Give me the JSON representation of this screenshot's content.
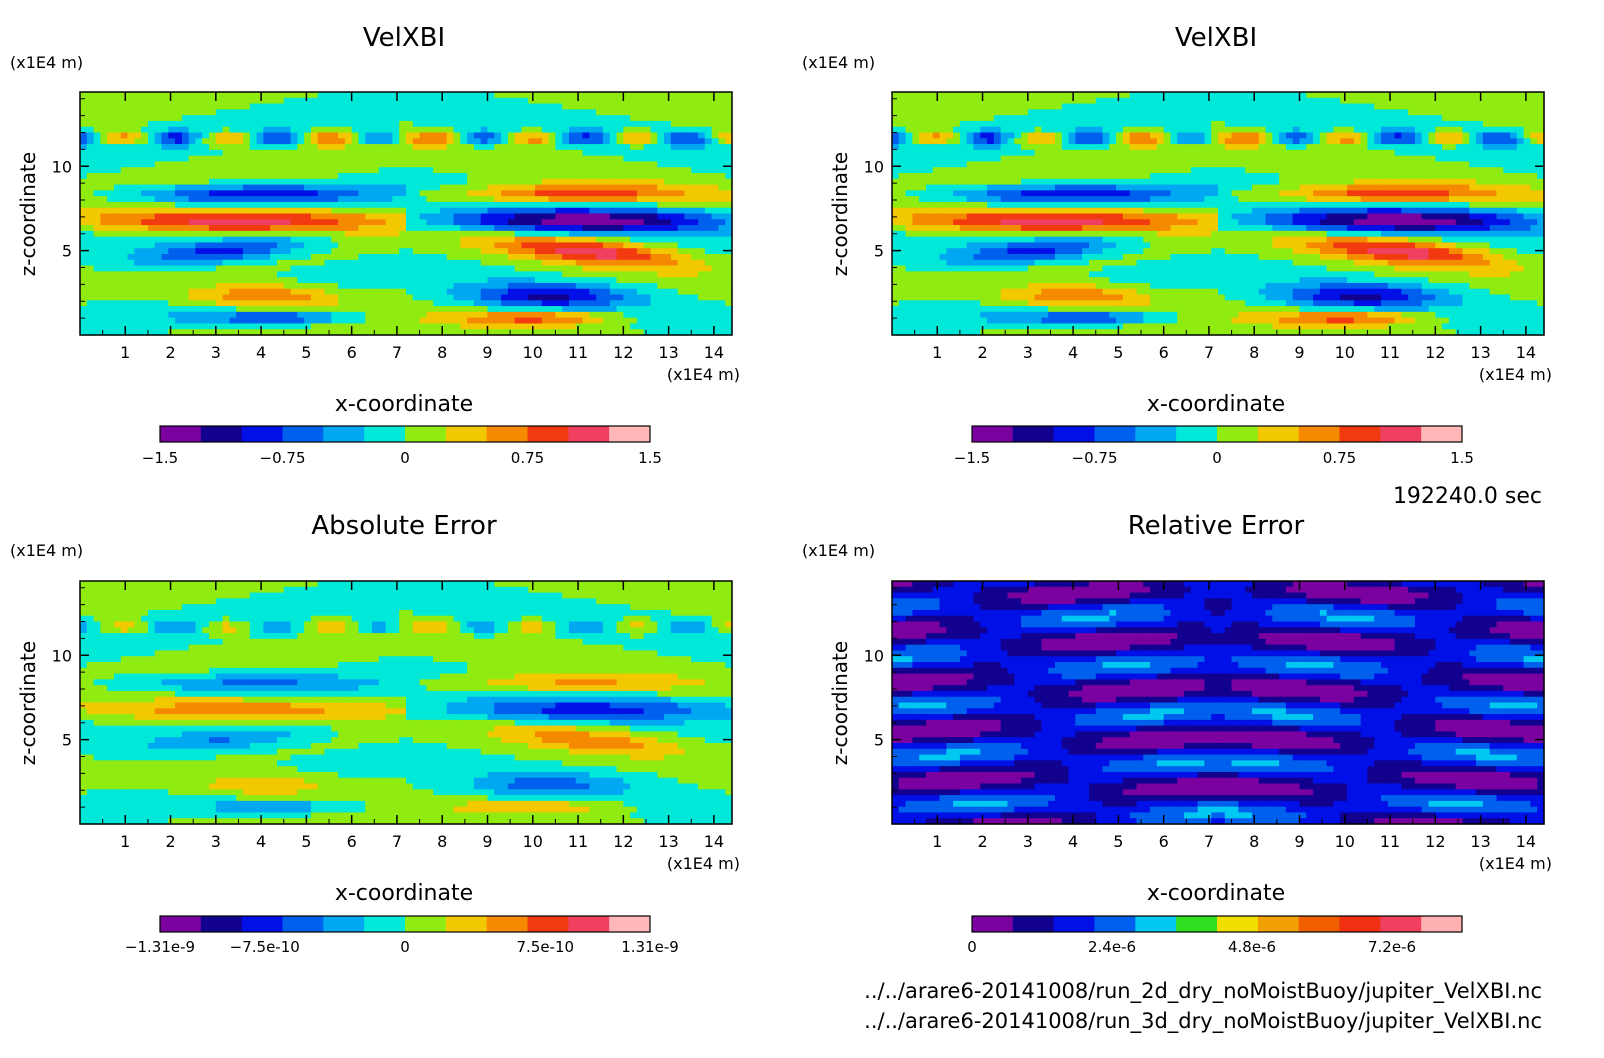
{
  "chart_data": [
    {
      "type": "heatmap",
      "title": "VelXBI",
      "xlabel": "x-coordinate",
      "ylabel": "z-coordinate",
      "x_unit": "(x1E4 m)",
      "y_unit": "(x1E4 m)",
      "xlim": [
        0,
        14.4
      ],
      "ylim": [
        0,
        14.4
      ],
      "x_ticks": [
        "1",
        "2",
        "3",
        "4",
        "5",
        "6",
        "7",
        "8",
        "9",
        "10",
        "11",
        "12",
        "13",
        "14"
      ],
      "y_ticks": [
        "5",
        "10"
      ],
      "colorbar": {
        "min": -1.5,
        "max": 1.5,
        "tick_labels": [
          "-1.5",
          "-0.75",
          "0",
          "0.75",
          "1.5"
        ]
      },
      "field": "symmetric"
    },
    {
      "type": "heatmap",
      "title": "VelXBI",
      "xlabel": "x-coordinate",
      "ylabel": "z-coordinate",
      "x_unit": "(x1E4 m)",
      "y_unit": "(x1E4 m)",
      "xlim": [
        0,
        14.4
      ],
      "ylim": [
        0,
        14.4
      ],
      "x_ticks": [
        "1",
        "2",
        "3",
        "4",
        "5",
        "6",
        "7",
        "8",
        "9",
        "10",
        "11",
        "12",
        "13",
        "14"
      ],
      "y_ticks": [
        "5",
        "10"
      ],
      "colorbar": {
        "min": -1.5,
        "max": 1.5,
        "tick_labels": [
          "-1.5",
          "-0.75",
          "0",
          "0.75",
          "1.5"
        ]
      },
      "field": "symmetric"
    },
    {
      "type": "heatmap",
      "title": "Absolute Error",
      "xlabel": "x-coordinate",
      "ylabel": "z-coordinate",
      "x_unit": "(x1E4 m)",
      "y_unit": "(x1E4 m)",
      "xlim": [
        0,
        14.4
      ],
      "ylim": [
        0,
        14.4
      ],
      "x_ticks": [
        "1",
        "2",
        "3",
        "4",
        "5",
        "6",
        "7",
        "8",
        "9",
        "10",
        "11",
        "12",
        "13",
        "14"
      ],
      "y_ticks": [
        "5",
        "10"
      ],
      "colorbar": {
        "min": -1.31e-09,
        "max": 1.31e-09,
        "tick_labels": [
          "-1.31e-9",
          "-7.5e-10",
          "0",
          "7.5e-10",
          "1.31e-9"
        ]
      },
      "field": "symmetric"
    },
    {
      "type": "heatmap",
      "title": "Relative Error",
      "xlabel": "x-coordinate",
      "ylabel": "z-coordinate",
      "x_unit": "(x1E4 m)",
      "y_unit": "(x1E4 m)",
      "xlim": [
        0,
        14.4
      ],
      "ylim": [
        0,
        14.4
      ],
      "x_ticks": [
        "1",
        "2",
        "3",
        "4",
        "5",
        "6",
        "7",
        "8",
        "9",
        "10",
        "11",
        "12",
        "13",
        "14"
      ],
      "y_ticks": [
        "5",
        "10"
      ],
      "colorbar": {
        "min": 0,
        "max": 8.4e-06,
        "tick_labels": [
          "0",
          "2.4e-6",
          "4.8e-6",
          "7.2e-6"
        ]
      },
      "field": "positive"
    }
  ],
  "colors": {
    "symmetric": [
      "#7a00a0",
      "#12008e",
      "#0010e6",
      "#0060ee",
      "#00a8f2",
      "#00e8d8",
      "#90ec10",
      "#f2c800",
      "#f58a00",
      "#f23a10",
      "#f04060",
      "#ffb8b8"
    ],
    "positive": [
      "#7a00a0",
      "#12008e",
      "#0010e6",
      "#0060ee",
      "#00c8f0",
      "#30e020",
      "#f0e000",
      "#f0a000",
      "#f06000",
      "#f03010",
      "#f04060",
      "#ffb0b0"
    ]
  },
  "time_label": "192240.0 sec",
  "files": [
    "../../arare6-20141008/run_2d_dry_noMoistBuoy/jupiter_VelXBI.nc",
    "../../arare6-20141008/run_3d_dry_noMoistBuoy/jupiter_VelXBI.nc"
  ]
}
